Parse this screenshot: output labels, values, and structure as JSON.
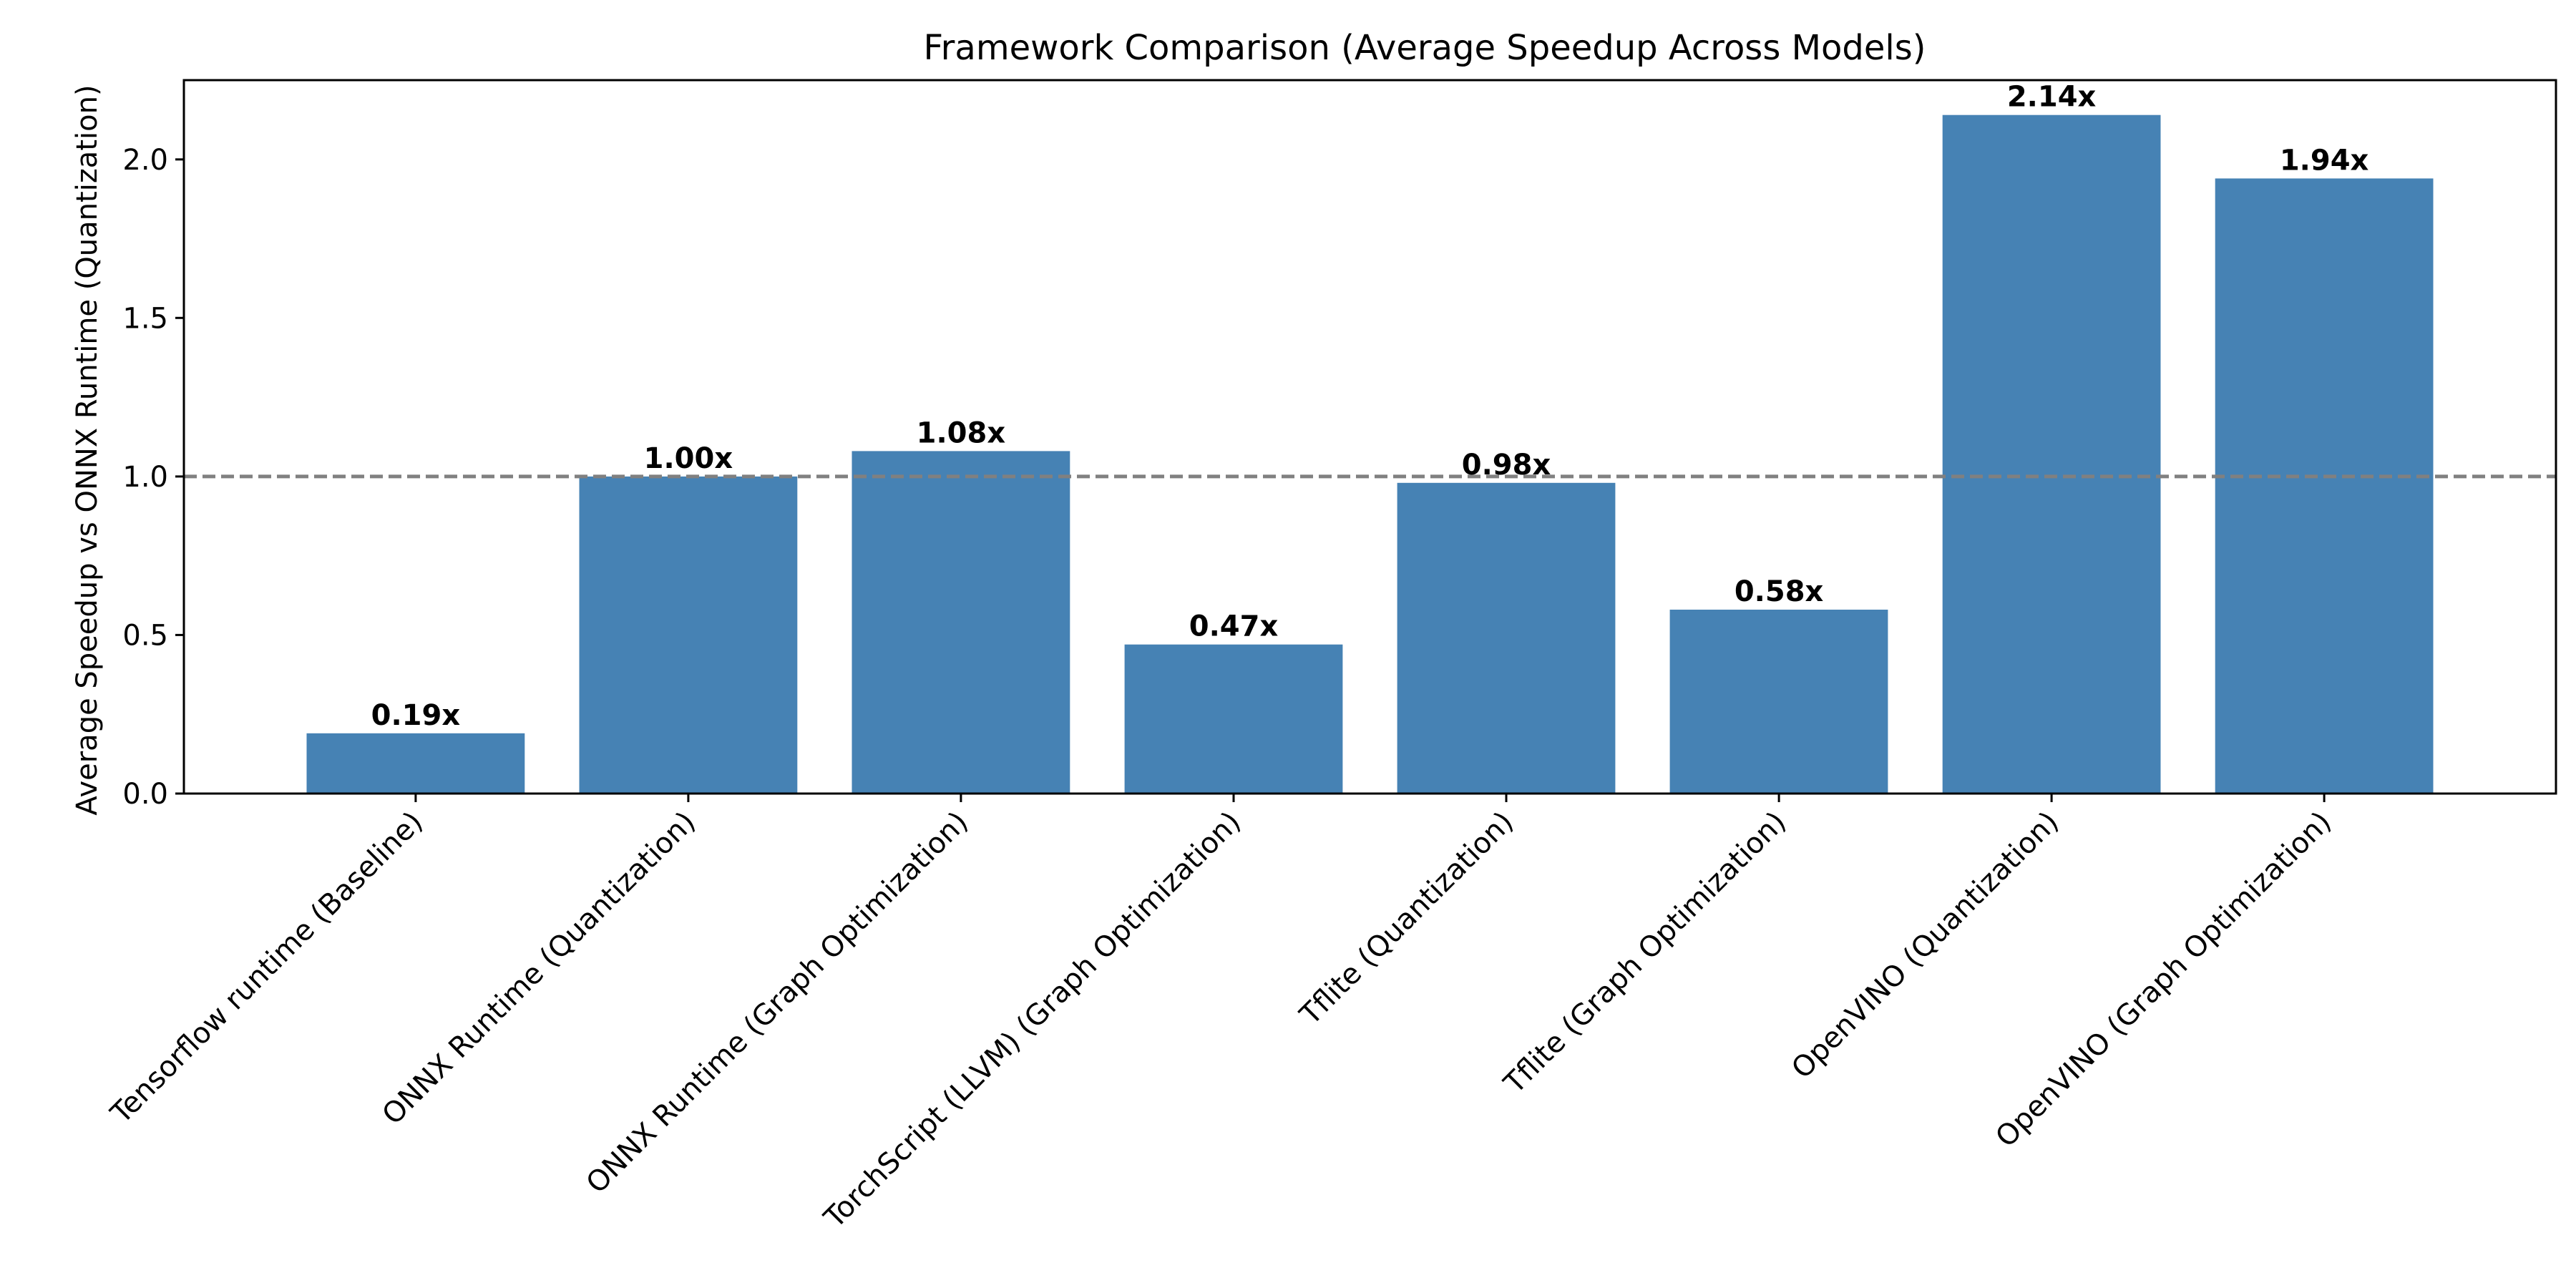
{
  "chart_data": {
    "type": "bar",
    "title": "Framework Comparison (Average Speedup Across Models)",
    "xlabel": "",
    "ylabel": "Average Speedup vs ONNX Runtime (Quantization)",
    "categories": [
      "Tensorflow runtime (Baseline)",
      "ONNX Runtime (Quantization)",
      "ONNX Runtime (Graph Optimization)",
      "TorchScript (LLVM) (Graph Optimization)",
      "Tflite (Quantization)",
      "Tflite (Graph Optimization)",
      "OpenVINO (Quantization)",
      "OpenVINO (Graph Optimization)"
    ],
    "values": [
      0.19,
      1.0,
      1.08,
      0.47,
      0.98,
      0.58,
      2.14,
      1.94
    ],
    "data_labels": [
      "0.19x",
      "1.00x",
      "1.08x",
      "0.47x",
      "0.98x",
      "0.58x",
      "2.14x",
      "1.94x"
    ],
    "ylim": [
      0,
      2.25
    ],
    "yticks": [
      0.0,
      0.5,
      1.0,
      1.5,
      2.0
    ],
    "ytick_labels": [
      "0.0",
      "0.5",
      "1.0",
      "1.5",
      "2.0"
    ],
    "reference_line": {
      "y": 1.0,
      "style": "dashed",
      "color": "#808080"
    },
    "bar_color": "#4682b4",
    "grid": false
  }
}
